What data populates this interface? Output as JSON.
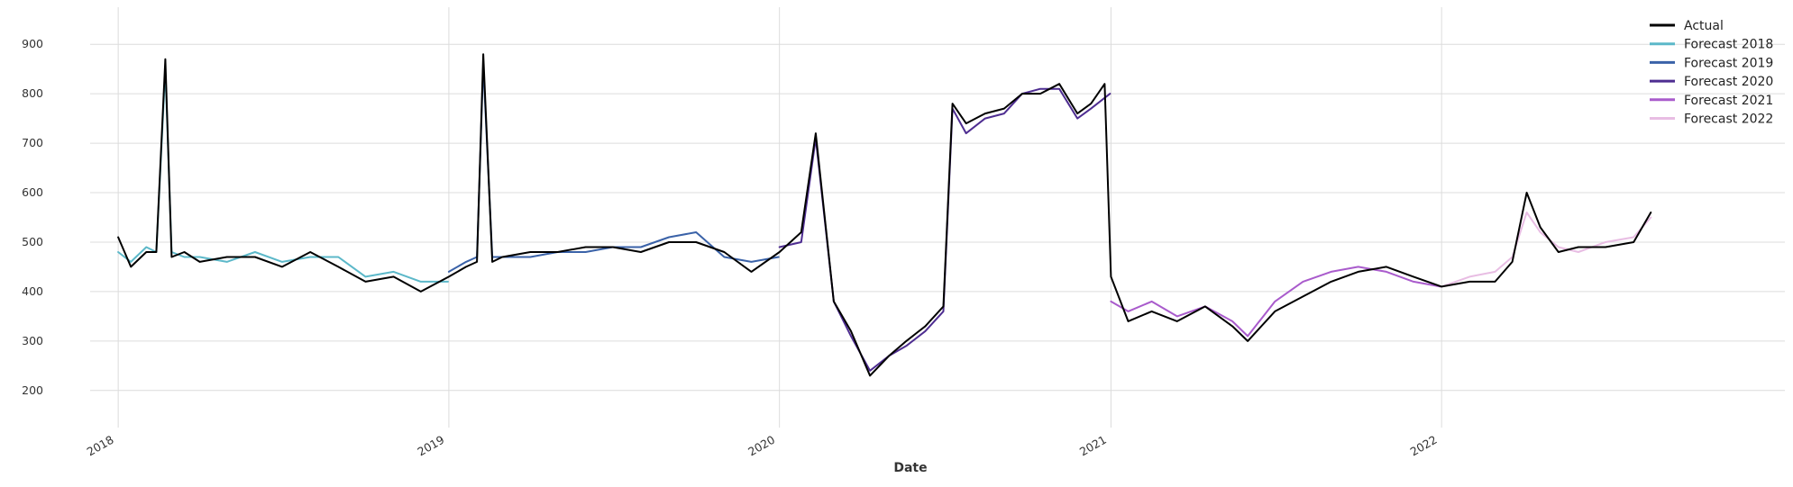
{
  "chart_data": {
    "type": "line",
    "title": "",
    "xlabel": "Date",
    "ylabel": "",
    "x_type": "date",
    "xlim": [
      "2017-12-01",
      "2023-01-15"
    ],
    "ylim": [
      125,
      975
    ],
    "x_ticks": [
      "2018-01-01",
      "2019-01-01",
      "2020-01-01",
      "2021-01-01",
      "2022-01-01"
    ],
    "x_tick_labels": [
      "2018",
      "2019",
      "2020",
      "2021",
      "2022"
    ],
    "y_ticks": [
      200,
      300,
      400,
      500,
      600,
      700,
      800,
      900
    ],
    "y_tick_labels": [
      "200",
      "300",
      "400",
      "500",
      "600",
      "700",
      "800",
      "900"
    ],
    "grid": true,
    "legend_position": "top-right",
    "series": [
      {
        "name": "Actual",
        "color": "#000000",
        "x": [
          "2018-01-01",
          "2018-01-15",
          "2018-02-01",
          "2018-02-12",
          "2018-02-22",
          "2018-03-01",
          "2018-03-15",
          "2018-04-01",
          "2018-05-01",
          "2018-06-01",
          "2018-07-01",
          "2018-08-01",
          "2018-09-01",
          "2018-10-01",
          "2018-11-01",
          "2018-12-01",
          "2019-01-01",
          "2019-01-20",
          "2019-02-01",
          "2019-02-08",
          "2019-02-18",
          "2019-03-01",
          "2019-04-01",
          "2019-05-01",
          "2019-06-01",
          "2019-07-01",
          "2019-08-01",
          "2019-09-01",
          "2019-10-01",
          "2019-11-01",
          "2019-12-01",
          "2020-01-01",
          "2020-01-25",
          "2020-02-10",
          "2020-03-01",
          "2020-03-20",
          "2020-04-10",
          "2020-05-01",
          "2020-05-20",
          "2020-06-10",
          "2020-06-30",
          "2020-07-10",
          "2020-07-25",
          "2020-08-15",
          "2020-09-05",
          "2020-09-25",
          "2020-10-15",
          "2020-11-05",
          "2020-11-25",
          "2020-12-10",
          "2020-12-25",
          "2021-01-01",
          "2021-01-20",
          "2021-02-15",
          "2021-03-15",
          "2021-04-15",
          "2021-05-15",
          "2021-06-01",
          "2021-07-01",
          "2021-08-01",
          "2021-09-01",
          "2021-10-01",
          "2021-11-01",
          "2021-12-01",
          "2022-01-01",
          "2022-02-01",
          "2022-03-01",
          "2022-03-20",
          "2022-04-05",
          "2022-04-20",
          "2022-05-10",
          "2022-06-01",
          "2022-07-01",
          "2022-08-01",
          "2022-08-20"
        ],
        "y": [
          510,
          450,
          480,
          480,
          870,
          470,
          480,
          460,
          470,
          470,
          450,
          480,
          450,
          420,
          430,
          400,
          430,
          450,
          460,
          880,
          460,
          470,
          480,
          480,
          490,
          490,
          480,
          500,
          500,
          480,
          440,
          480,
          520,
          720,
          380,
          320,
          230,
          270,
          300,
          330,
          370,
          780,
          740,
          760,
          770,
          800,
          800,
          820,
          760,
          780,
          820,
          430,
          340,
          360,
          340,
          370,
          330,
          300,
          360,
          390,
          420,
          440,
          450,
          430,
          410,
          420,
          420,
          460,
          600,
          530,
          480,
          490,
          490,
          500,
          560
        ]
      },
      {
        "name": "Forecast 2018",
        "color": "#5cb8c9",
        "x": [
          "2018-01-01",
          "2018-01-15",
          "2018-02-01",
          "2018-02-12",
          "2018-02-22",
          "2018-03-01",
          "2018-03-15",
          "2018-04-01",
          "2018-05-01",
          "2018-06-01",
          "2018-07-01",
          "2018-08-01",
          "2018-09-01",
          "2018-10-01",
          "2018-11-01",
          "2018-12-01",
          "2018-12-31"
        ],
        "y": [
          480,
          460,
          490,
          480,
          850,
          480,
          470,
          470,
          460,
          480,
          460,
          470,
          470,
          430,
          440,
          420,
          420
        ]
      },
      {
        "name": "Forecast 2019",
        "color": "#3a62a8",
        "x": [
          "2019-01-01",
          "2019-01-20",
          "2019-02-01",
          "2019-02-08",
          "2019-02-18",
          "2019-03-01",
          "2019-04-01",
          "2019-05-01",
          "2019-06-01",
          "2019-07-01",
          "2019-08-01",
          "2019-09-01",
          "2019-10-01",
          "2019-11-01",
          "2019-12-01",
          "2019-12-31"
        ],
        "y": [
          440,
          460,
          470,
          860,
          470,
          470,
          470,
          480,
          480,
          490,
          490,
          510,
          520,
          470,
          460,
          470
        ]
      },
      {
        "name": "Forecast 2020",
        "color": "#4e2d91",
        "x": [
          "2020-01-01",
          "2020-01-25",
          "2020-02-10",
          "2020-03-01",
          "2020-03-20",
          "2020-04-10",
          "2020-05-01",
          "2020-05-20",
          "2020-06-10",
          "2020-06-30",
          "2020-07-10",
          "2020-07-25",
          "2020-08-15",
          "2020-09-05",
          "2020-09-25",
          "2020-10-15",
          "2020-11-05",
          "2020-11-25",
          "2020-12-10",
          "2020-12-31"
        ],
        "y": [
          490,
          500,
          710,
          380,
          310,
          240,
          270,
          290,
          320,
          360,
          770,
          720,
          750,
          760,
          800,
          810,
          810,
          750,
          770,
          800
        ]
      },
      {
        "name": "Forecast 2021",
        "color": "#a95bcc",
        "x": [
          "2021-01-01",
          "2021-01-20",
          "2021-02-15",
          "2021-03-15",
          "2021-04-15",
          "2021-05-15",
          "2021-06-01",
          "2021-07-01",
          "2021-08-01",
          "2021-09-01",
          "2021-10-01",
          "2021-11-01",
          "2021-12-01",
          "2021-12-31"
        ],
        "y": [
          380,
          360,
          380,
          350,
          370,
          340,
          310,
          380,
          420,
          440,
          450,
          440,
          420,
          410
        ]
      },
      {
        "name": "Forecast 2022",
        "color": "#e8bde3",
        "x": [
          "2022-01-01",
          "2022-02-01",
          "2022-03-01",
          "2022-03-20",
          "2022-04-05",
          "2022-04-20",
          "2022-05-10",
          "2022-06-01",
          "2022-07-01",
          "2022-08-01",
          "2022-08-20"
        ],
        "y": [
          410,
          430,
          440,
          470,
          560,
          520,
          490,
          480,
          500,
          510,
          550
        ]
      }
    ]
  }
}
